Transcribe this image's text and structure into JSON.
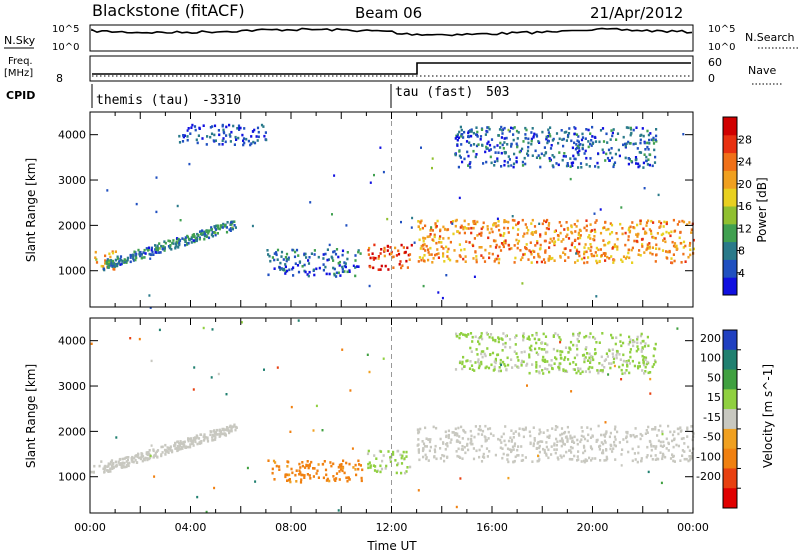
{
  "header": {
    "station": "Blackstone (fitACF)",
    "beam": "Beam 06",
    "date": "21/Apr/2012"
  },
  "status_panel": {
    "left_top_label": "N.Sky",
    "left_top_ticks": [
      "10^5",
      "10^0"
    ],
    "right_top_label": "N.Search",
    "right_top_ticks": [
      "10^5",
      "10^0"
    ],
    "freq_label": "Freq.",
    "freq_unit": "[MHz]",
    "freq_ticks": [
      "8"
    ],
    "nave_label": "Nave",
    "nave_ticks": [
      "60",
      "0"
    ],
    "cpid_label": "CPID",
    "modes": [
      {
        "name": "themis (tau)",
        "cpid": "-3310",
        "start_hour": 0
      },
      {
        "name": "tau (fast)",
        "cpid": "503",
        "start_hour": 12
      }
    ]
  },
  "chart_data": [
    {
      "type": "heatmap",
      "title": "",
      "xlabel": "",
      "ylabel": "Slant Range [km]",
      "x_unit": "UT hours",
      "xlim": [
        0,
        24
      ],
      "ylim": [
        200,
        4500
      ],
      "yticks": [
        1000,
        2000,
        3000,
        4000
      ],
      "colorbar": {
        "label": "Power [dB]",
        "ticks": [
          4,
          8,
          12,
          16,
          20,
          24,
          28
        ],
        "range": [
          0,
          32
        ],
        "colors": [
          "#1010e0",
          "#2050c0",
          "#2a7a8a",
          "#40a050",
          "#90c030",
          "#e8d020",
          "#f0a020",
          "#f07018",
          "#e83010",
          "#d00000"
        ]
      },
      "regions": [
        {
          "t0": 0.0,
          "t1": 1.0,
          "r0": 1050,
          "r1": 1450,
          "value": 20
        },
        {
          "t0": 0.5,
          "t1": 5.8,
          "r0": 1150,
          "r1": 2050,
          "value": 8,
          "slope": "rising"
        },
        {
          "t0": 3.5,
          "t1": 7.0,
          "r0": 3800,
          "r1": 4250,
          "value": 4
        },
        {
          "t0": 7.0,
          "t1": 10.8,
          "r0": 900,
          "r1": 1500,
          "value": 6
        },
        {
          "t0": 11.0,
          "t1": 12.8,
          "r0": 1050,
          "r1": 1600,
          "value": 26
        },
        {
          "t0": 13.0,
          "t1": 24.0,
          "r0": 1200,
          "r1": 2150,
          "value": 22
        },
        {
          "t0": 14.5,
          "t1": 22.5,
          "r0": 3300,
          "r1": 4200,
          "value": 6
        }
      ]
    },
    {
      "type": "heatmap",
      "title": "",
      "xlabel": "Time UT",
      "ylabel": "Slant Range [km]",
      "x_unit": "UT hours",
      "xlim": [
        0,
        24
      ],
      "ylim": [
        200,
        4500
      ],
      "xticks": [
        "00:00",
        "04:00",
        "08:00",
        "12:00",
        "16:00",
        "20:00",
        "00:00"
      ],
      "yticks": [
        1000,
        2000,
        3000,
        4000
      ],
      "colorbar": {
        "label": "Velocity [m s^-1]",
        "ticks": [
          200,
          100,
          50,
          15,
          -15,
          -50,
          -100,
          -200
        ],
        "colors": [
          "#2040c0",
          "#208070",
          "#40a040",
          "#90d040",
          "#c8c8c0",
          "#f0a020",
          "#f08010",
          "#e84010",
          "#e00000"
        ]
      },
      "regions": [
        {
          "t0": 0.0,
          "t1": 1.0,
          "r0": 1100,
          "r1": 1400,
          "value": 0
        },
        {
          "t0": 0.5,
          "t1": 5.8,
          "r0": 1200,
          "r1": 2100,
          "value": 0,
          "slope": "rising"
        },
        {
          "t0": 7.0,
          "t1": 10.8,
          "r0": 900,
          "r1": 1400,
          "value": -60
        },
        {
          "t0": 11.0,
          "t1": 12.8,
          "r0": 1100,
          "r1": 1600,
          "value": 20
        },
        {
          "t0": 13.0,
          "t1": 24.0,
          "r0": 1350,
          "r1": 2150,
          "value": 0
        },
        {
          "t0": 14.5,
          "t1": 22.5,
          "r0": 3300,
          "r1": 4200,
          "value": 20
        }
      ]
    }
  ]
}
